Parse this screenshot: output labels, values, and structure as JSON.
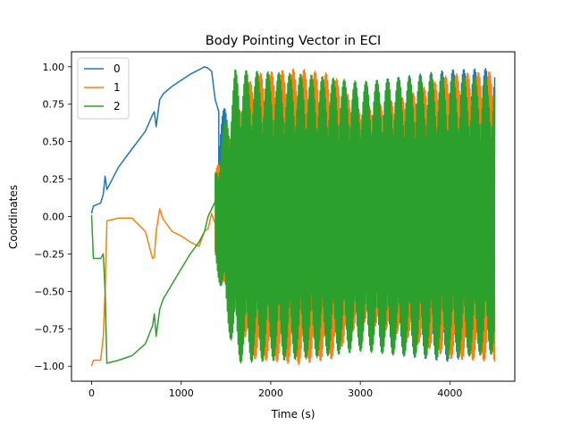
{
  "chart_data": {
    "type": "line",
    "title": "Body Pointing Vector in ECI",
    "xlabel": "Time (s)",
    "ylabel": "Coordinates",
    "xlim": [
      -225,
      4725
    ],
    "ylim": [
      -1.1,
      1.1
    ],
    "xticks": [
      0,
      1000,
      2000,
      3000,
      4000
    ],
    "xtick_labels": [
      "0",
      "1000",
      "2000",
      "3000",
      "4000"
    ],
    "yticks": [
      -1.0,
      -0.75,
      -0.5,
      -0.25,
      0.0,
      0.25,
      0.5,
      0.75,
      1.0
    ],
    "ytick_labels": [
      "−1.00",
      "−0.75",
      "−0.50",
      "−0.25",
      "0.00",
      "0.25",
      "0.50",
      "0.75",
      "1.00"
    ],
    "grid": false,
    "legend_position": "upper-left",
    "series": [
      {
        "name": "0",
        "color": "#1f77b4",
        "x": [
          0,
          20,
          100,
          130,
          150,
          170,
          300,
          450,
          600,
          680,
          700,
          720,
          760,
          800,
          900,
          1000,
          1100,
          1200,
          1260,
          1300,
          1340,
          1380,
          1420
        ],
        "y": [
          0.02,
          0.07,
          0.09,
          0.15,
          0.27,
          0.18,
          0.33,
          0.45,
          0.57,
          0.68,
          0.7,
          0.6,
          0.78,
          0.82,
          0.87,
          0.91,
          0.95,
          0.98,
          1.0,
          0.99,
          0.97,
          0.78,
          0.7
        ],
        "oscillation": {
          "x_start": 1420,
          "x_end": 4500,
          "upper": [
            [
              1420,
              0.7
            ],
            [
              2000,
              0.9
            ],
            [
              2800,
              0.85
            ],
            [
              3300,
              0.92
            ],
            [
              4000,
              0.98
            ],
            [
              4500,
              0.99
            ]
          ],
          "lower": [
            [
              1420,
              -0.4
            ],
            [
              2000,
              -0.9
            ],
            [
              2800,
              -0.85
            ],
            [
              3300,
              -0.92
            ],
            [
              4000,
              -0.97
            ],
            [
              4500,
              -0.88
            ]
          ]
        }
      },
      {
        "name": "1",
        "color": "#ff7f0e",
        "x": [
          0,
          20,
          50,
          100,
          130,
          150,
          170,
          300,
          450,
          600,
          680,
          700,
          720,
          760,
          800,
          900,
          1000,
          1100,
          1200,
          1260,
          1300,
          1340,
          1380
        ],
        "y": [
          -1.0,
          -0.96,
          -0.96,
          -0.96,
          -0.8,
          -0.5,
          -0.03,
          -0.01,
          -0.01,
          -0.1,
          -0.28,
          -0.27,
          -0.1,
          0.05,
          -0.02,
          -0.1,
          -0.13,
          -0.17,
          -0.2,
          -0.1,
          -0.08,
          0.02,
          -0.05
        ],
        "oscillation": {
          "x_start": 1380,
          "x_end": 4500,
          "upper": [
            [
              1380,
              0.3
            ],
            [
              1800,
              0.95
            ],
            [
              2300,
              0.99
            ],
            [
              2700,
              0.95
            ],
            [
              3000,
              0.7
            ],
            [
              3500,
              0.8
            ],
            [
              4000,
              0.95
            ],
            [
              4500,
              0.97
            ]
          ],
          "lower": [
            [
              1380,
              -0.3
            ],
            [
              1800,
              -0.95
            ],
            [
              2300,
              -0.99
            ],
            [
              2700,
              -0.95
            ],
            [
              3000,
              -0.7
            ],
            [
              3500,
              -0.8
            ],
            [
              4000,
              -0.95
            ],
            [
              4500,
              -0.97
            ]
          ]
        }
      },
      {
        "name": "2",
        "color": "#2ca02c",
        "x": [
          0,
          20,
          100,
          130,
          150,
          170,
          300,
          450,
          600,
          680,
          700,
          720,
          760,
          800,
          900,
          1000,
          1100,
          1200,
          1260,
          1300,
          1340,
          1380
        ],
        "y": [
          0.01,
          -0.28,
          -0.28,
          -0.25,
          -0.5,
          -0.98,
          -0.96,
          -0.93,
          -0.85,
          -0.73,
          -0.65,
          -0.8,
          -0.62,
          -0.55,
          -0.45,
          -0.35,
          -0.25,
          -0.17,
          -0.1,
          0.0,
          0.05,
          0.1
        ],
        "oscillation": {
          "x_start": 1380,
          "x_end": 4500,
          "upper": [
            [
              1380,
              0.3
            ],
            [
              1600,
              0.98
            ],
            [
              2400,
              0.95
            ],
            [
              3000,
              0.9
            ],
            [
              3800,
              0.95
            ],
            [
              4500,
              0.92
            ]
          ],
          "lower": [
            [
              1380,
              -0.3
            ],
            [
              1600,
              -0.98
            ],
            [
              2400,
              -0.95
            ],
            [
              3000,
              -0.9
            ],
            [
              3800,
              -0.95
            ],
            [
              4500,
              -0.92
            ]
          ]
        }
      }
    ]
  }
}
